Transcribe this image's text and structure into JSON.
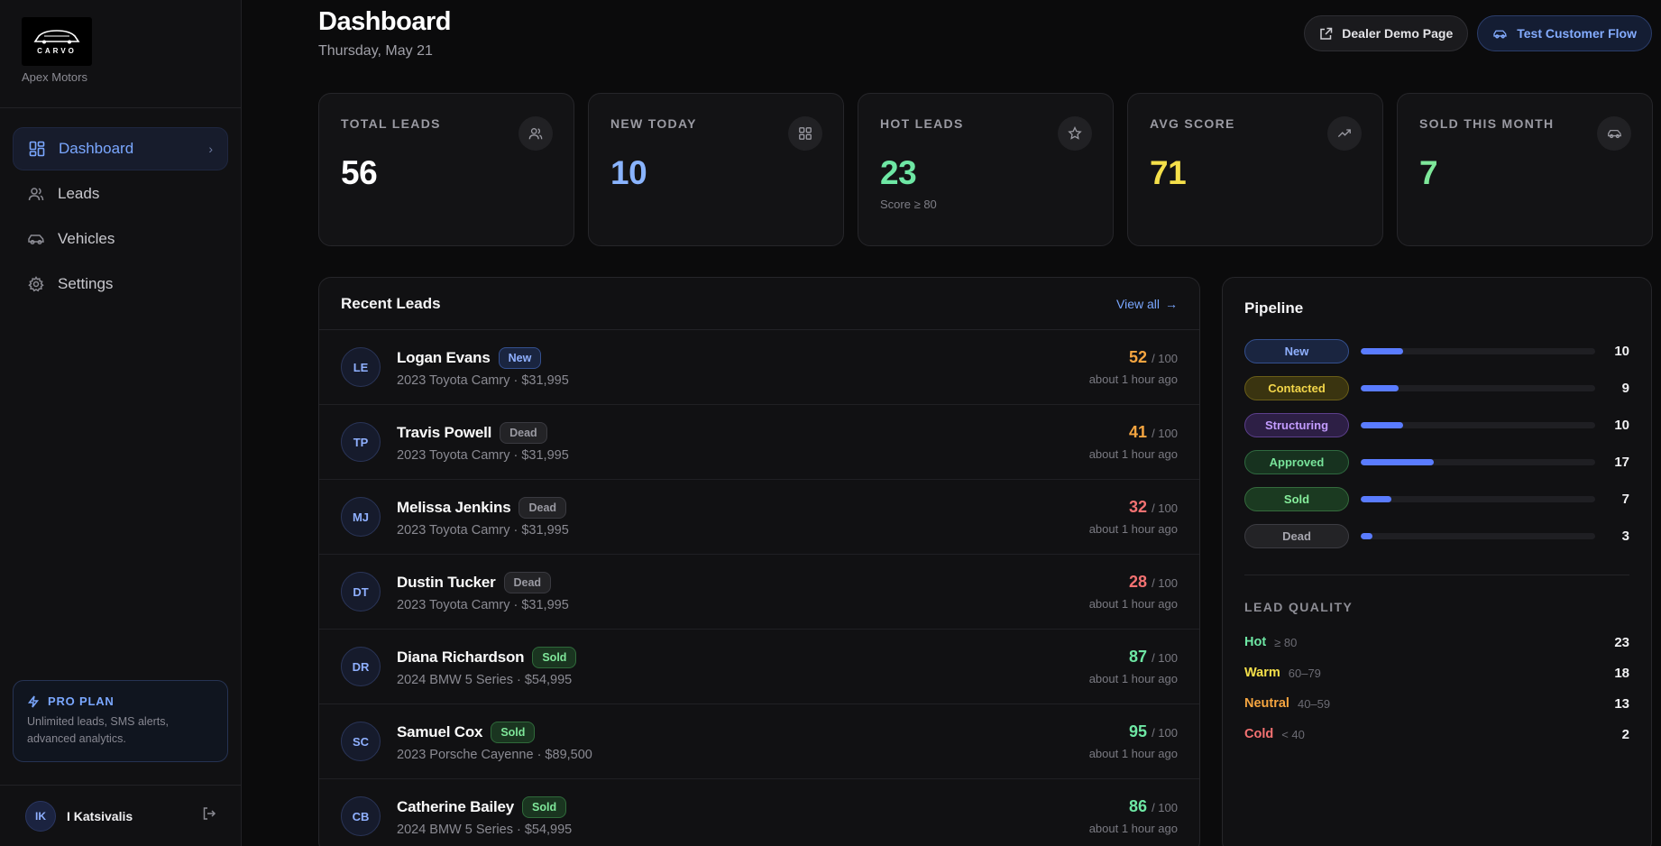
{
  "sidebar": {
    "logo_text": "CARVO",
    "dealer_name": "Apex Motors",
    "nav": [
      {
        "label": "Dashboard",
        "icon": "dashboard-icon",
        "active": true
      },
      {
        "label": "Leads",
        "icon": "users-icon",
        "active": false
      },
      {
        "label": "Vehicles",
        "icon": "car-icon",
        "active": false
      },
      {
        "label": "Settings",
        "icon": "gear-icon",
        "active": false
      }
    ],
    "pro_plan": {
      "title": "PRO PLAN",
      "description": "Unlimited leads, SMS alerts, advanced analytics."
    },
    "user": {
      "initials": "IK",
      "name": "I Katsivalis"
    }
  },
  "header": {
    "title": "Dashboard",
    "date": "Thursday, May 21",
    "dealer_demo_label": "Dealer Demo Page",
    "test_flow_label": "Test Customer Flow"
  },
  "stats": [
    {
      "label": "TOTAL LEADS",
      "value": "56",
      "sub": "",
      "color": "#ffffff",
      "icon": "users-icon"
    },
    {
      "label": "NEW TODAY",
      "value": "10",
      "sub": "",
      "color": "#8ab4ff",
      "icon": "grid-icon"
    },
    {
      "label": "HOT LEADS",
      "value": "23",
      "sub": "Score ≥ 80",
      "color": "#6ee7a4",
      "icon": "star-icon"
    },
    {
      "label": "AVG SCORE",
      "value": "71",
      "sub": "",
      "color": "#f5e04a",
      "icon": "trending-up-icon"
    },
    {
      "label": "SOLD THIS MONTH",
      "value": "7",
      "sub": "",
      "color": "#7ee89a",
      "icon": "car-icon"
    }
  ],
  "recent_leads": {
    "title": "Recent Leads",
    "view_all": "View all",
    "rows": [
      {
        "initials": "LE",
        "name": "Logan Evans",
        "status": "New",
        "vehicle": "2023 Toyota Camry · $31,995",
        "score": "52",
        "score_color": "#f5a540",
        "max": "/ 100",
        "time": "about 1 hour ago"
      },
      {
        "initials": "TP",
        "name": "Travis Powell",
        "status": "Dead",
        "vehicle": "2023 Toyota Camry · $31,995",
        "score": "41",
        "score_color": "#f5a540",
        "max": "/ 100",
        "time": "about 1 hour ago"
      },
      {
        "initials": "MJ",
        "name": "Melissa Jenkins",
        "status": "Dead",
        "vehicle": "2023 Toyota Camry · $31,995",
        "score": "32",
        "score_color": "#f47272",
        "max": "/ 100",
        "time": "about 1 hour ago"
      },
      {
        "initials": "DT",
        "name": "Dustin Tucker",
        "status": "Dead",
        "vehicle": "2023 Toyota Camry · $31,995",
        "score": "28",
        "score_color": "#f47272",
        "max": "/ 100",
        "time": "about 1 hour ago"
      },
      {
        "initials": "DR",
        "name": "Diana Richardson",
        "status": "Sold",
        "vehicle": "2024 BMW 5 Series · $54,995",
        "score": "87",
        "score_color": "#6ee7a4",
        "max": "/ 100",
        "time": "about 1 hour ago"
      },
      {
        "initials": "SC",
        "name": "Samuel Cox",
        "status": "Sold",
        "vehicle": "2023 Porsche Cayenne · $89,500",
        "score": "95",
        "score_color": "#6ee7a4",
        "max": "/ 100",
        "time": "about 1 hour ago"
      },
      {
        "initials": "CB",
        "name": "Catherine Bailey",
        "status": "Sold",
        "vehicle": "2024 BMW 5 Series · $54,995",
        "score": "86",
        "score_color": "#6ee7a4",
        "max": "/ 100",
        "time": "about 1 hour ago"
      }
    ]
  },
  "pipeline": {
    "title": "Pipeline",
    "stages": [
      {
        "label": "New",
        "count": "10",
        "fraction": 0.18,
        "bg": "#1a2540",
        "border": "#34508f",
        "fg": "#8fb0ff"
      },
      {
        "label": "Contacted",
        "count": "9",
        "fraction": 0.16,
        "bg": "#3a3410",
        "border": "#6a5e18",
        "fg": "#f3d64a"
      },
      {
        "label": "Structuring",
        "count": "10",
        "fraction": 0.18,
        "bg": "#2d1f45",
        "border": "#5c3f8c",
        "fg": "#c39cff"
      },
      {
        "label": "Approved",
        "count": "17",
        "fraction": 0.31,
        "bg": "#17321f",
        "border": "#2f6a40",
        "fg": "#78e39a"
      },
      {
        "label": "Sold",
        "count": "7",
        "fraction": 0.13,
        "bg": "#1b3a21",
        "border": "#356b3d",
        "fg": "#86ee9c"
      },
      {
        "label": "Dead",
        "count": "3",
        "fraction": 0.05,
        "bg": "#232326",
        "border": "#3c3c42",
        "fg": "#a5a5ad"
      }
    ],
    "quality_title": "LEAD QUALITY",
    "quality": [
      {
        "label": "Hot",
        "range": "≥ 80",
        "count": "23",
        "color": "#6ee7a4"
      },
      {
        "label": "Warm",
        "range": "60–79",
        "count": "18",
        "color": "#f5e04a"
      },
      {
        "label": "Neutral",
        "range": "40–59",
        "count": "13",
        "color": "#f5a540"
      },
      {
        "label": "Cold",
        "range": "< 40",
        "count": "2",
        "color": "#f47272"
      }
    ]
  },
  "badge_styles": {
    "New": {
      "bg": "#1a2540",
      "border": "#34508f",
      "fg": "#8fb0ff"
    },
    "Dead": {
      "bg": "#232326",
      "border": "#3a3a40",
      "fg": "#9a9aa2"
    },
    "Sold": {
      "bg": "#1a3520",
      "border": "#2f6a3a",
      "fg": "#7fe79a"
    }
  }
}
